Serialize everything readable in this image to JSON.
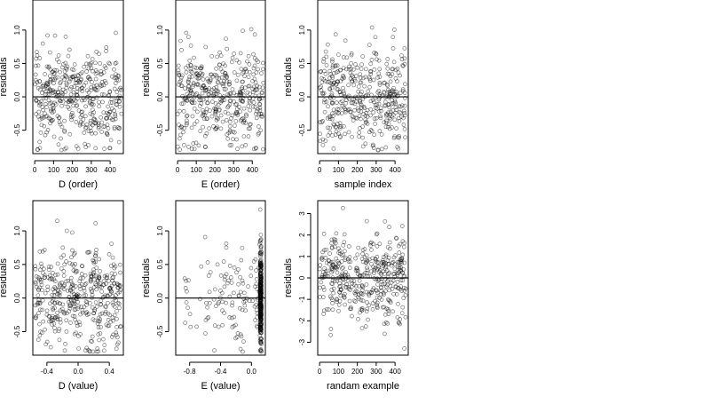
{
  "chart_data": [
    {
      "type": "scatter",
      "xlabel": "D (order)",
      "ylabel": "residuals",
      "xlim": [
        -10,
        470
      ],
      "ylim": [
        -0.85,
        1.45
      ],
      "xticks": [
        0,
        100,
        200,
        300,
        400
      ],
      "yticks": [
        -0.5,
        0.0,
        0.5,
        1.0
      ],
      "ytick_labels": [
        "-0.5",
        "0.0",
        "0.5",
        "1.0"
      ],
      "hline": 0,
      "grid": false,
      "x_spec": {
        "dist": "uniform",
        "min": 0,
        "max": 460
      },
      "y_spec": {
        "dist": "normal",
        "sd": 0.38,
        "max": 1.35,
        "min": -0.8
      },
      "n_points": 420,
      "x_values_note": "observation order 0-460",
      "values": []
    },
    {
      "type": "scatter",
      "xlabel": "E (order)",
      "ylabel": "residuals",
      "xlim": [
        -10,
        470
      ],
      "ylim": [
        -0.85,
        1.45
      ],
      "xticks": [
        0,
        100,
        200,
        300,
        400
      ],
      "yticks": [
        -0.5,
        0.0,
        0.5,
        1.0
      ],
      "ytick_labels": [
        "-0.5",
        "0.0",
        "0.5",
        "1.0"
      ],
      "hline": 0,
      "grid": false,
      "x_spec": {
        "dist": "uniform",
        "min": 0,
        "max": 460
      },
      "y_spec": {
        "dist": "normal",
        "sd": 0.38,
        "max": 1.35,
        "min": -0.8
      },
      "n_points": 420
    },
    {
      "type": "scatter",
      "xlabel": "sample index",
      "ylabel": "residuals",
      "xlim": [
        -10,
        470
      ],
      "ylim": [
        -0.85,
        1.45
      ],
      "xticks": [
        0,
        100,
        200,
        300,
        400
      ],
      "yticks": [
        -0.5,
        0.0,
        0.5,
        1.0
      ],
      "ytick_labels": [
        "-0.5",
        "0.0",
        "0.5",
        "1.0"
      ],
      "hline": 0,
      "grid": false,
      "x_spec": {
        "dist": "uniform",
        "min": 0,
        "max": 460
      },
      "y_spec": {
        "dist": "normal",
        "sd": 0.38,
        "max": 1.35,
        "min": -0.8
      },
      "n_points": 420
    },
    {
      "type": "scatter",
      "xlabel": "D (value)",
      "ylabel": "residuals",
      "xlim": [
        -0.58,
        0.58
      ],
      "ylim": [
        -0.85,
        1.45
      ],
      "xticks": [
        -0.4,
        0.0,
        0.4
      ],
      "xtick_labels": [
        "-0.4",
        "0.0",
        "0.4"
      ],
      "yticks": [
        -0.5,
        0.0,
        0.5,
        1.0
      ],
      "ytick_labels": [
        "-0.5",
        "0.0",
        "0.5",
        "1.0"
      ],
      "hline": 0,
      "grid": false,
      "x_spec": {
        "dist": "discrete",
        "levels": [
          -0.5,
          -0.4,
          -0.3,
          -0.2,
          -0.1,
          0.0,
          0.1,
          0.2,
          0.3,
          0.4,
          0.5
        ],
        "jitter": 0.05
      },
      "y_spec": {
        "dist": "normal",
        "sd": 0.38,
        "max": 1.35,
        "min": -0.8
      },
      "n_points": 420
    },
    {
      "type": "scatter",
      "xlabel": "E (value)",
      "ylabel": "residuals",
      "xlim": [
        -0.98,
        0.18
      ],
      "ylim": [
        -0.85,
        1.45
      ],
      "xticks": [
        -0.8,
        -0.4,
        0.0
      ],
      "xtick_labels": [
        "-0.8",
        "-0.4",
        "0.0"
      ],
      "yticks": [
        -0.5,
        0.0,
        0.5,
        1.0
      ],
      "ytick_labels": [
        "-0.5",
        "0.0",
        "0.5",
        "1.0"
      ],
      "hline": 0,
      "grid": false,
      "x_spec": {
        "dist": "clustered",
        "cluster_value": 0.12,
        "cluster_share": 0.72,
        "min": -0.95,
        "max": 0.12
      },
      "y_spec": {
        "dist": "normal",
        "sd": 0.38,
        "max": 1.35,
        "min": -0.8
      },
      "n_points": 420
    },
    {
      "type": "scatter",
      "xlabel": "randam example",
      "ylabel": "residuals",
      "xlim": [
        -10,
        470
      ],
      "ylim": [
        -3.6,
        3.6
      ],
      "xticks": [
        0,
        100,
        200,
        300,
        400
      ],
      "yticks": [
        -3,
        -2,
        -1,
        0,
        1,
        2,
        3
      ],
      "ytick_labels": [
        "-3",
        "-2",
        "-1",
        "0",
        "1",
        "2",
        "3"
      ],
      "hline": 0,
      "grid": false,
      "x_spec": {
        "dist": "uniform",
        "min": 0,
        "max": 460
      },
      "y_spec": {
        "dist": "normal",
        "sd": 1.0,
        "max": 3.4,
        "min": -3.3
      },
      "n_points": 420
    }
  ]
}
